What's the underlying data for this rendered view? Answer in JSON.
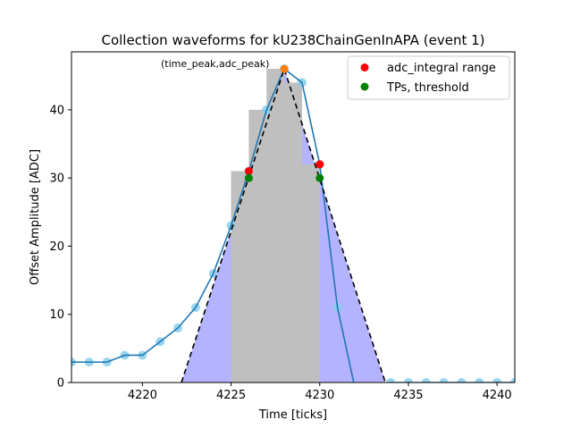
{
  "chart_data": {
    "type": "line",
    "title": "Collection waveforms for kU238ChainGenInAPA (event 1)",
    "xlabel": "Time [ticks]",
    "ylabel": "Offset Amplitude [ADC]",
    "xlim": [
      4216,
      4241
    ],
    "ylim": [
      0,
      48.5
    ],
    "x_ticks": [
      4220,
      4225,
      4230,
      4235,
      4240
    ],
    "y_ticks": [
      0,
      10,
      20,
      30,
      40
    ],
    "grid": false,
    "legend": {
      "placement": "top-right",
      "entries": [
        {
          "label": "adc_integral range",
          "color": "#ff0000",
          "marker": "circle"
        },
        {
          "label": "TPs, threshold",
          "color": "#008000",
          "marker": "circle"
        }
      ]
    },
    "colors": {
      "waveform_line": "#1f77b4",
      "waveform_points": "#87ceeb",
      "integral_fill": "#b3b3ff",
      "tp_bars": "#bfbfbf",
      "triangle": "#000000",
      "peak_marker": "#ff7f0e",
      "adc_integral_range": "#ff0000",
      "tp_threshold": "#008000"
    },
    "waveform": {
      "x": [
        4216,
        4217,
        4218,
        4219,
        4220,
        4221,
        4222,
        4223,
        4224,
        4225,
        4226,
        4227,
        4228,
        4229,
        4230,
        4231,
        4232,
        4233,
        4234,
        4235,
        4236,
        4237,
        4238,
        4239,
        4240,
        4241
      ],
      "y": [
        3,
        3,
        3,
        4,
        4,
        6,
        8,
        11,
        16,
        23,
        31,
        40,
        46,
        44,
        32,
        11,
        -1,
        -1,
        0,
        0,
        0,
        0,
        0,
        0,
        0,
        0
      ]
    },
    "tp_bars": {
      "x": [
        4225.5,
        4226.5,
        4227.5,
        4228.5,
        4229.5
      ],
      "heights": [
        31,
        40,
        46,
        44,
        32
      ],
      "width": 1
    },
    "integral_region": {
      "x_start": 4225.4,
      "x_end": 4230.5
    },
    "triangle": {
      "start": [
        4222.2,
        0
      ],
      "peak": [
        4228,
        46
      ],
      "end": [
        4233.7,
        0
      ]
    },
    "peak_point": {
      "x": 4228,
      "y": 46
    },
    "adc_integral_points": [
      {
        "x": 4226,
        "y": 31
      },
      {
        "x": 4230,
        "y": 32
      }
    ],
    "tp_threshold_points": [
      {
        "x": 4226,
        "y": 30
      },
      {
        "x": 4230,
        "y": 30
      }
    ],
    "annotation": {
      "text": "(time_peak,adc_peak)",
      "x": 4228,
      "y": 46
    }
  }
}
